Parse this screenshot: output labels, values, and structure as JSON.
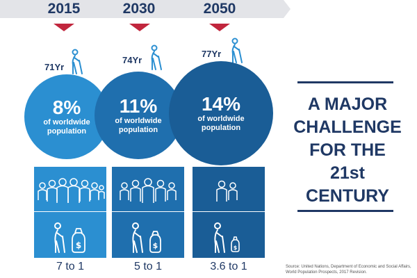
{
  "years": [
    "2015",
    "2030",
    "2050"
  ],
  "ages": [
    "71Yr",
    "74Yr",
    "77Yr"
  ],
  "shares": [
    {
      "value": "8%",
      "label": "of worldwide population"
    },
    {
      "value": "11%",
      "label": "of worldwide population"
    },
    {
      "value": "14%",
      "label": "of worldwide population"
    }
  ],
  "ratios": [
    "7 to 1",
    "5 to 1",
    "3.6 to 1"
  ],
  "headline": [
    "A MAJOR",
    "CHALLENGE",
    "FOR THE 21st",
    "CENTURY"
  ],
  "source": "Source: United Nations, Department of Economic and Social Affairs, World Population Prospects, 2017 Revision.",
  "colors": {
    "navy": "#1f3864",
    "red": "#c1263d",
    "blue_light": "#2b8fd1",
    "blue_mid": "#1f6fae",
    "blue_dark": "#1a5d96",
    "timeline": "#e3e4e8"
  },
  "icons": [
    "person-with-cane-icon",
    "people-group-icon",
    "money-bag-icon"
  ]
}
